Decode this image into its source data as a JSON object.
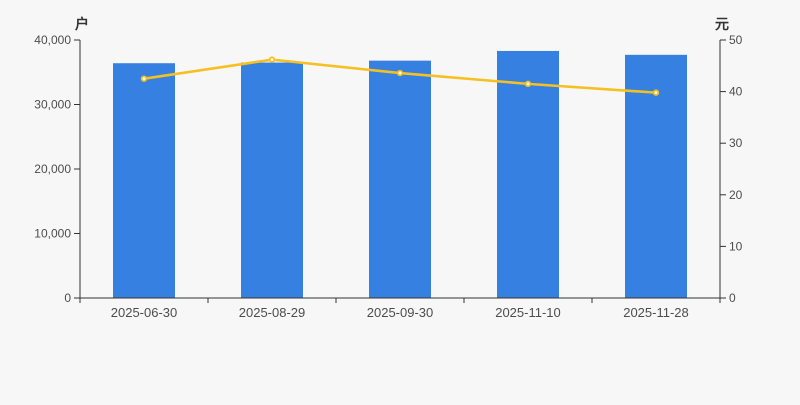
{
  "page": {
    "background_color": "#f7f7f7"
  },
  "chart_data": {
    "type": "bar+line",
    "categories": [
      "2025-06-30",
      "2025-08-29",
      "2025-09-30",
      "2025-11-10",
      "2025-11-28"
    ],
    "series": [
      {
        "id": "bar-series",
        "type": "bar",
        "axis": "left",
        "color": "#3580e0",
        "values": [
          36400,
          36500,
          36800,
          38300,
          37700
        ]
      },
      {
        "id": "line-series",
        "type": "line",
        "axis": "right",
        "color": "#f6c022",
        "marker_fill": "#ffffff",
        "values": [
          42.5,
          46.2,
          43.6,
          41.5,
          39.8
        ]
      }
    ],
    "left_axis": {
      "unit_label": "户",
      "min": 0,
      "max": 40000,
      "tick_labels": [
        "0",
        "10,000",
        "20,000",
        "30,000",
        "40,000"
      ]
    },
    "right_axis": {
      "unit_label": "元",
      "min": 0,
      "max": 50,
      "tick_labels": [
        "0",
        "10",
        "20",
        "30",
        "40",
        "50"
      ]
    },
    "grid": false,
    "legend": false,
    "axis_color": "#333333",
    "tick_label_color": "#4d4d4d"
  }
}
